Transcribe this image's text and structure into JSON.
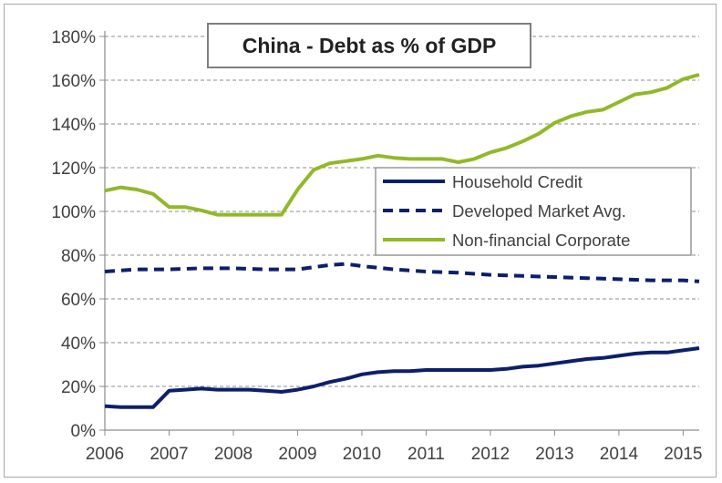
{
  "chart_data": {
    "type": "line",
    "title": "China - Debt as % of GDP",
    "xlabel": "",
    "ylabel": "",
    "xlim": [
      2006,
      2015.25
    ],
    "ylim": [
      0,
      180
    ],
    "y_ticks": [
      "0%",
      "20%",
      "40%",
      "60%",
      "80%",
      "100%",
      "120%",
      "140%",
      "160%",
      "180%"
    ],
    "x_ticks": [
      "2006",
      "2007",
      "2008",
      "2009",
      "2010",
      "2011",
      "2012",
      "2013",
      "2014",
      "2015"
    ],
    "grid": "horizontal dashed",
    "legend_position": "center-right",
    "series": [
      {
        "name": "Household Credit",
        "color": "#0d1f6b",
        "dash": "solid",
        "x": [
          2006.0,
          2006.25,
          2006.5,
          2006.75,
          2007.0,
          2007.25,
          2007.5,
          2007.75,
          2008.0,
          2008.25,
          2008.5,
          2008.75,
          2009.0,
          2009.25,
          2009.5,
          2009.75,
          2010.0,
          2010.25,
          2010.5,
          2010.75,
          2011.0,
          2011.25,
          2011.5,
          2011.75,
          2012.0,
          2012.25,
          2012.5,
          2012.75,
          2013.0,
          2013.25,
          2013.5,
          2013.75,
          2014.0,
          2014.25,
          2014.5,
          2014.75,
          2015.0,
          2015.25
        ],
        "values": [
          11,
          10.5,
          10.5,
          10.5,
          18,
          18.5,
          19,
          18.5,
          18.5,
          18.5,
          18,
          17.5,
          18.5,
          20,
          22,
          23.5,
          25.5,
          26.5,
          27,
          27,
          27.5,
          27.5,
          27.5,
          27.5,
          27.5,
          28,
          29,
          29.5,
          30.5,
          31.5,
          32.5,
          33,
          34,
          35,
          35.5,
          35.5,
          36.5,
          37.5
        ]
      },
      {
        "name": "Developed Market Avg.",
        "color": "#0d1f6b",
        "dash": "dashed",
        "x": [
          2006.0,
          2006.5,
          2007.0,
          2007.5,
          2008.0,
          2008.5,
          2009.0,
          2009.5,
          2009.75,
          2010.0,
          2010.5,
          2011.0,
          2011.5,
          2012.0,
          2012.5,
          2013.0,
          2013.5,
          2014.0,
          2014.5,
          2015.0,
          2015.25
        ],
        "values": [
          72.5,
          73.5,
          73.5,
          74,
          74,
          73.5,
          73.5,
          75.5,
          76,
          75,
          73.5,
          72.5,
          72,
          71,
          70.5,
          70,
          69.5,
          69,
          68.5,
          68.5,
          68
        ]
      },
      {
        "name": "Non-financial Corporate",
        "color": "#92b82a",
        "dash": "solid",
        "x": [
          2006.0,
          2006.25,
          2006.5,
          2006.75,
          2007.0,
          2007.25,
          2007.5,
          2007.75,
          2008.0,
          2008.25,
          2008.5,
          2008.75,
          2009.0,
          2009.25,
          2009.5,
          2009.75,
          2010.0,
          2010.25,
          2010.5,
          2010.75,
          2011.0,
          2011.25,
          2011.5,
          2011.75,
          2012.0,
          2012.25,
          2012.5,
          2012.75,
          2013.0,
          2013.25,
          2013.5,
          2013.75,
          2014.0,
          2014.25,
          2014.5,
          2014.75,
          2015.0,
          2015.25
        ],
        "values": [
          109.5,
          111,
          110,
          108,
          102,
          102,
          100.5,
          98.5,
          98.5,
          98.5,
          98.5,
          98.5,
          110,
          119,
          122,
          123,
          124,
          125.5,
          124.5,
          124,
          124,
          124,
          122.5,
          124,
          127,
          129,
          132,
          135.5,
          140.5,
          143.5,
          145.5,
          146.5,
          150,
          153.5,
          154.5,
          156.5,
          160.5,
          162.5
        ]
      }
    ]
  }
}
